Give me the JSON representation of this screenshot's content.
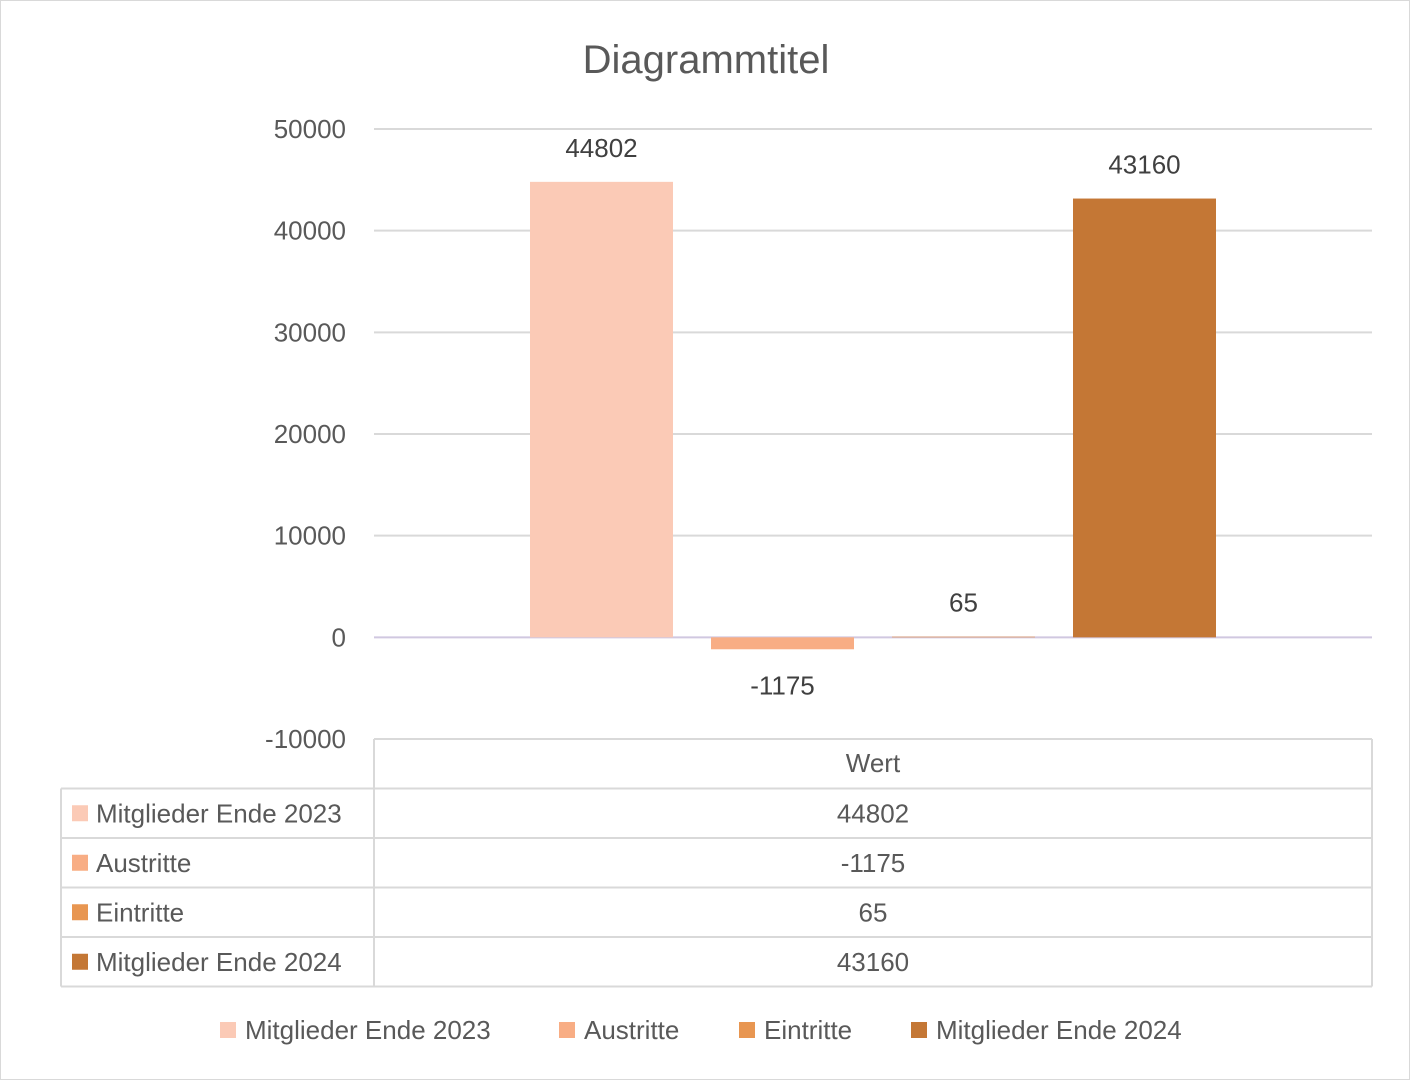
{
  "chart_data": {
    "type": "bar",
    "title": "Diagrammtitel",
    "category_label": "Wert",
    "ylim": [
      -10000,
      50000
    ],
    "y_ticks": [
      50000,
      40000,
      30000,
      20000,
      10000,
      0,
      -10000
    ],
    "y_tick_labels": [
      "50000",
      "40000",
      "30000",
      "20000",
      "10000",
      "0",
      "-10000"
    ],
    "grid": true,
    "legend_position": "bottom",
    "data_table": true,
    "series": [
      {
        "name": "Mitglieder Ende 2023",
        "value": 44802,
        "label": "44802",
        "color": "#FBCAB6"
      },
      {
        "name": "Austritte",
        "value": -1175,
        "label": "-1175",
        "color": "#F8AD84"
      },
      {
        "name": "Eintritte",
        "value": 65,
        "label": "65",
        "color": "#E89651"
      },
      {
        "name": "Mitglieder Ende 2024",
        "value": 43160,
        "label": "43160",
        "color": "#C47735"
      }
    ]
  }
}
